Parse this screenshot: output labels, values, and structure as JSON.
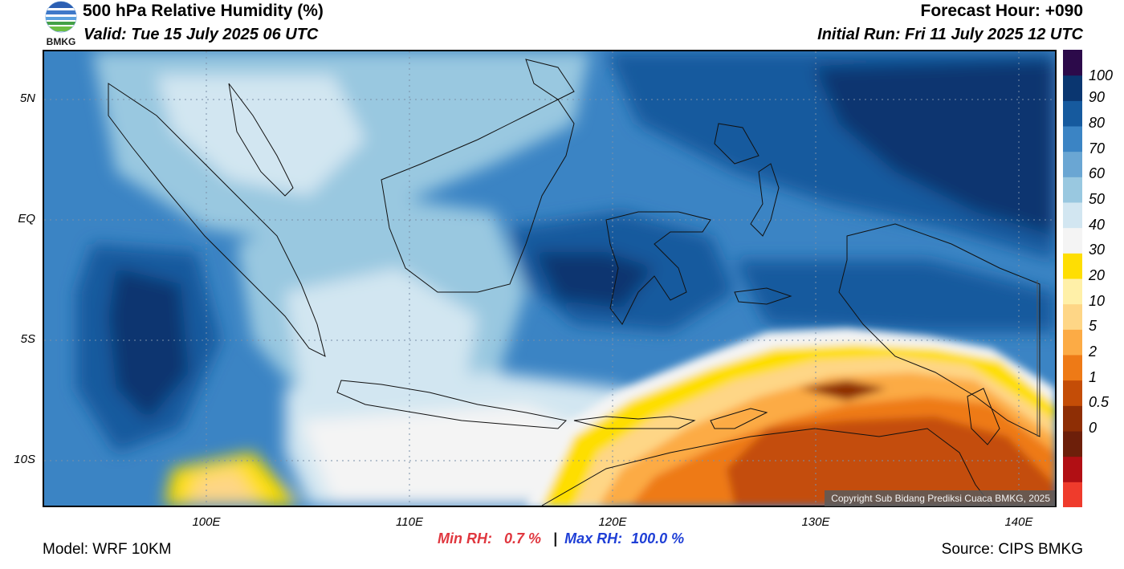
{
  "header": {
    "title": "500 hPa Relative Humidity (%)",
    "valid": "Valid: Tue 15 July 2025 06 UTC",
    "forecast_hour": "Forecast Hour: +090",
    "initial_run": "Initial Run: Fri 11 July 2025 12 UTC"
  },
  "logo": {
    "text": "BMKG",
    "icon": "bmkg-logo-icon"
  },
  "map": {
    "lat_labels": [
      {
        "text": "5N",
        "lat": 5
      },
      {
        "text": "EQ",
        "lat": 0
      },
      {
        "text": "5S",
        "lat": -5
      },
      {
        "text": "10S",
        "lat": -10
      }
    ],
    "lon_labels": [
      {
        "text": "100E",
        "lon": 100
      },
      {
        "text": "110E",
        "lon": 110
      },
      {
        "text": "120E",
        "lon": 120
      },
      {
        "text": "130E",
        "lon": 130
      },
      {
        "text": "140E",
        "lon": 140
      }
    ],
    "lon_range": [
      92,
      142
    ],
    "lat_range": [
      -12,
      7
    ],
    "copyright": "Copyright Sub Bidang Prediksi Cuaca BMKG, 2025"
  },
  "stats": {
    "min_label": "Min RH:",
    "min_value": "0.7 %",
    "separator": "|",
    "max_label": "Max RH:",
    "max_value": "100.0 %"
  },
  "footer": {
    "model": "Model: WRF 10KM",
    "source": "Source: CIPS BMKG"
  },
  "colorbar": {
    "labels": [
      "100",
      "90",
      "80",
      "70",
      "60",
      "50",
      "40",
      "30",
      "20",
      "10",
      "5",
      "2",
      "1",
      "0.5",
      "0"
    ],
    "colors": [
      "#ef3b2c",
      "#b10f14",
      "#6d1f0a",
      "#8e2e05",
      "#c44d07",
      "#ee7a16",
      "#fcab45",
      "#fed686",
      "#fff0a8",
      "#fede03",
      "#f4f4f4",
      "#d2e6f1",
      "#99c8e0",
      "#6aa6d3",
      "#3b84c4",
      "#165a9e",
      "#0a3670",
      "#2c0a4a"
    ]
  }
}
